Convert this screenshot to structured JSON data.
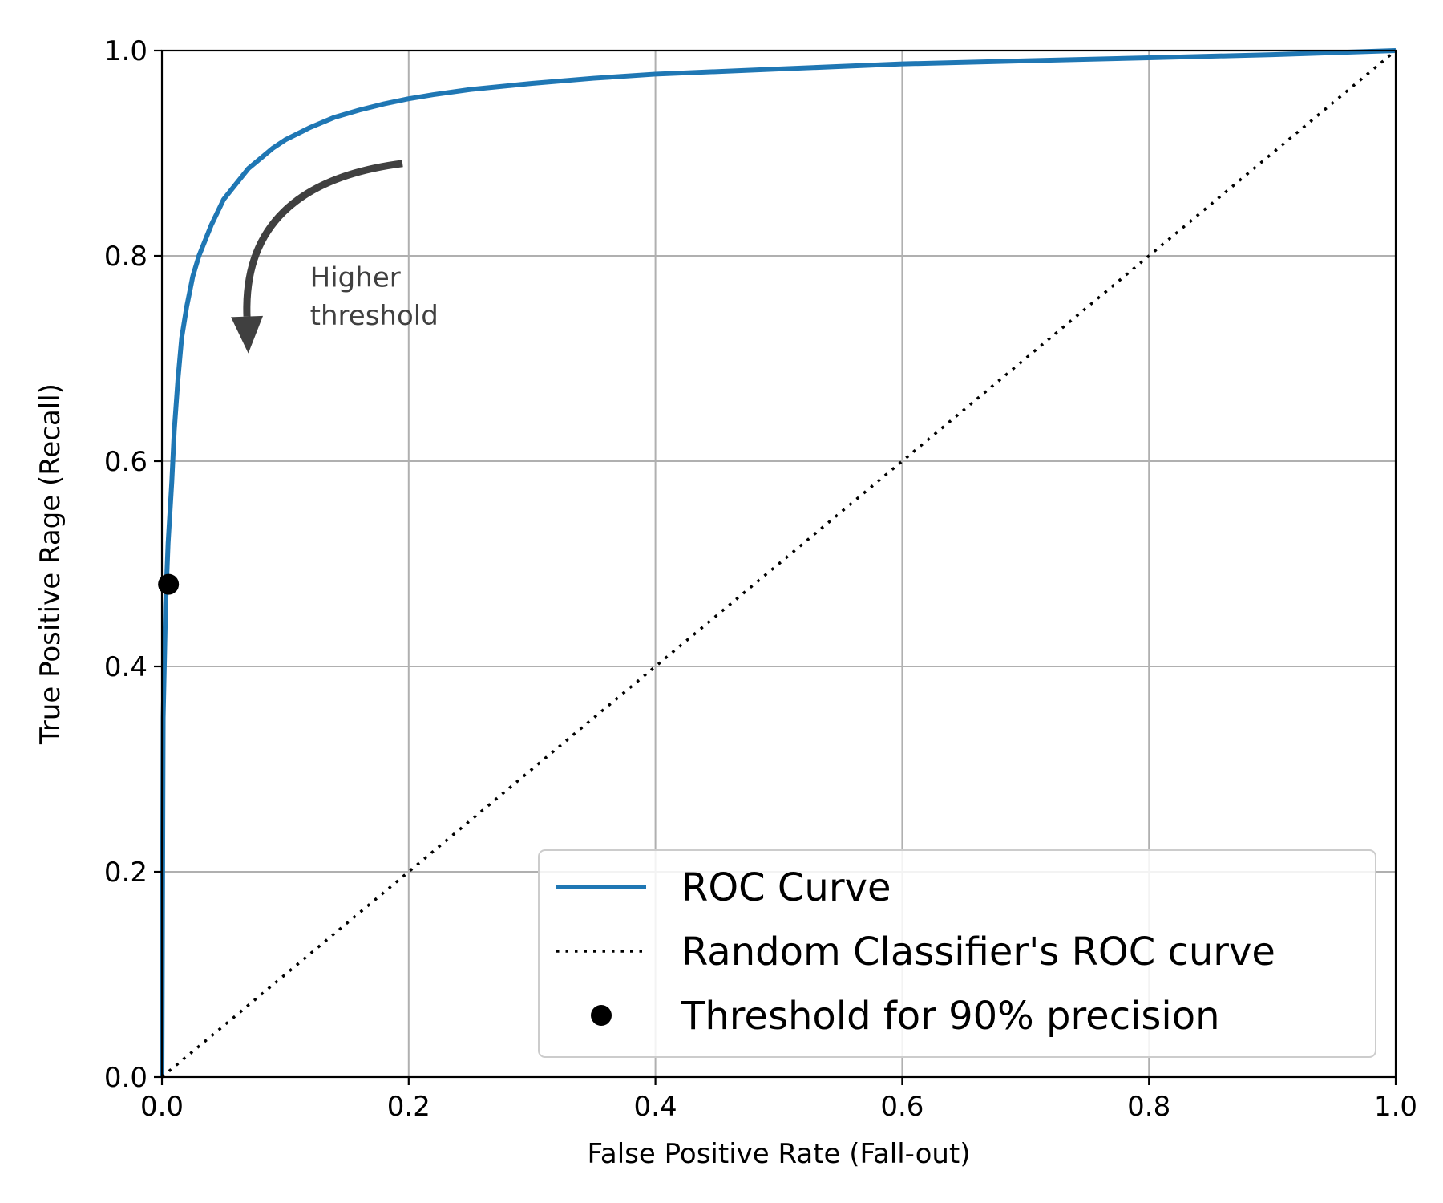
{
  "chart_data": {
    "type": "line",
    "title": "",
    "xlabel": "False Positive Rate (Fall-out)",
    "ylabel": "True Positive Rage (Recall)",
    "xlim": [
      0,
      1
    ],
    "ylim": [
      0,
      1
    ],
    "grid": true,
    "legend_position": "bottom-right",
    "x_tick_labels": [
      "0.0",
      "0.2",
      "0.4",
      "0.6",
      "0.8",
      "1.0"
    ],
    "y_tick_labels": [
      "0.0",
      "0.2",
      "0.4",
      "0.6",
      "0.8",
      "1.0"
    ],
    "x_ticks": [
      0,
      0.2,
      0.4,
      0.6,
      0.8,
      1.0
    ],
    "y_ticks": [
      0,
      0.2,
      0.4,
      0.6,
      0.8,
      1.0
    ],
    "series": [
      {
        "name": "ROC Curve",
        "style": "solid",
        "color": "#1f77b4",
        "x": [
          0,
          0.001,
          0.003,
          0.005,
          0.008,
          0.01,
          0.013,
          0.016,
          0.02,
          0.025,
          0.03,
          0.04,
          0.05,
          0.06,
          0.07,
          0.08,
          0.09,
          0.1,
          0.12,
          0.14,
          0.16,
          0.18,
          0.2,
          0.22,
          0.25,
          0.3,
          0.35,
          0.4,
          0.5,
          0.6,
          0.7,
          0.8,
          0.9,
          1.0
        ],
        "y": [
          0,
          0.35,
          0.46,
          0.52,
          0.58,
          0.63,
          0.68,
          0.72,
          0.75,
          0.78,
          0.8,
          0.83,
          0.855,
          0.87,
          0.885,
          0.895,
          0.905,
          0.913,
          0.925,
          0.935,
          0.942,
          0.948,
          0.953,
          0.957,
          0.962,
          0.968,
          0.973,
          0.977,
          0.982,
          0.987,
          0.99,
          0.993,
          0.996,
          1.0
        ]
      },
      {
        "name": "Random Classifier's ROC curve",
        "style": "dotted",
        "color": "#000000",
        "x": [
          0,
          1
        ],
        "y": [
          0,
          1
        ]
      },
      {
        "name": "Threshold for 90% precision",
        "style": "marker",
        "color": "#000000",
        "x": [
          0.0053
        ],
        "y": [
          0.48
        ]
      }
    ],
    "annotation": {
      "text_lines": [
        "Higher",
        "threshold"
      ],
      "text_x": 0.12,
      "text_y_lines": [
        0.77,
        0.733
      ],
      "arrow_start": [
        0.195,
        0.89
      ],
      "arrow_end": [
        0.07,
        0.705
      ],
      "arrow_color": "#404040"
    }
  }
}
